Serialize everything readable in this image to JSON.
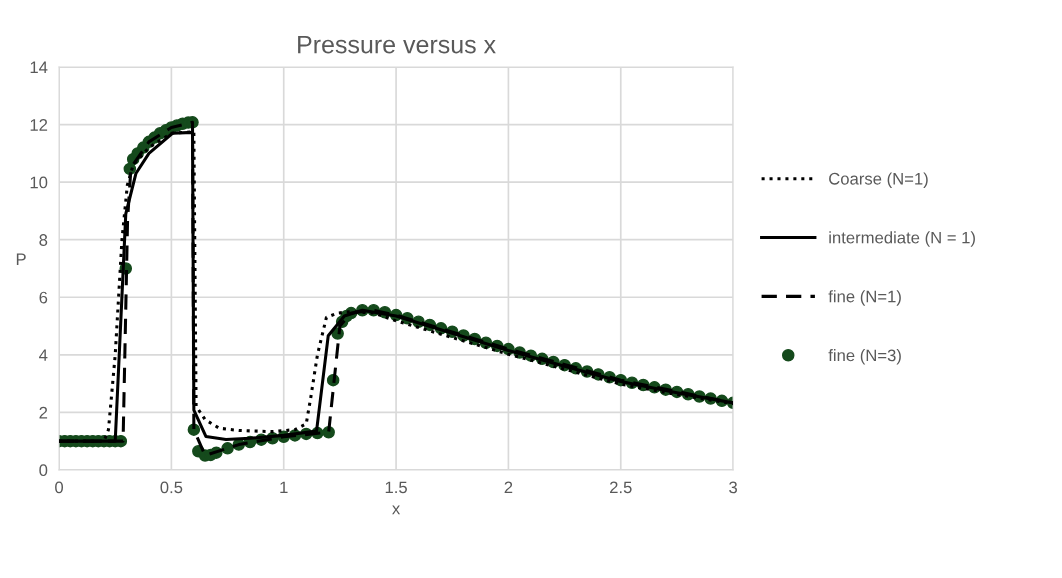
{
  "chart_data": {
    "type": "line",
    "title": "Pressure versus x",
    "xlabel": "x",
    "ylabel": "P",
    "xlim": [
      0,
      3
    ],
    "xticks": [
      0,
      0.5,
      1,
      1.5,
      2,
      2.5,
      3
    ],
    "ylim": [
      0,
      14
    ],
    "yticks": [
      0,
      2,
      4,
      6,
      8,
      10,
      12,
      14
    ],
    "grid": true,
    "legend": "right",
    "series": [
      {
        "name": "Coarse (N=1)",
        "color": "#000000",
        "line_style": "dotted",
        "marker": "none",
        "x": [
          0,
          0.2,
          0.22,
          0.25,
          0.28,
          0.304,
          0.33,
          0.4,
          0.5,
          0.6,
          0.61,
          0.62,
          0.65,
          0.713,
          0.8,
          0.95,
          1.05,
          1.1,
          1.12,
          1.15,
          1.19,
          1.24,
          1.3,
          1.4,
          1.5,
          1.75,
          2.0,
          2.25,
          2.5,
          2.75,
          3.0
        ],
        "values": [
          1,
          1,
          1.4,
          4,
          8,
          9.9,
          10.6,
          11.2,
          11.7,
          11.75,
          2.2,
          2.1,
          1.75,
          1.45,
          1.37,
          1.33,
          1.4,
          1.6,
          2.5,
          4.0,
          5.3,
          5.45,
          5.5,
          5.45,
          5.18,
          4.6,
          4.02,
          3.5,
          2.98,
          2.62,
          2.3
        ]
      },
      {
        "name": "intermediate (N = 1)",
        "color": "#000000",
        "line_style": "solid",
        "marker": "none",
        "x": [
          0,
          0.25,
          0.297,
          0.342,
          0.4,
          0.505,
          0.594,
          0.6,
          0.654,
          0.743,
          0.85,
          1.0,
          1.146,
          1.198,
          1.27,
          1.35,
          1.5,
          1.75,
          2.0,
          2.25,
          2.5,
          2.75,
          3.0
        ],
        "values": [
          1,
          1,
          8.9,
          10.3,
          11.0,
          11.7,
          11.73,
          2.08,
          1.16,
          1.06,
          1.1,
          1.2,
          1.35,
          4.66,
          5.35,
          5.55,
          5.35,
          4.75,
          4.15,
          3.6,
          3.07,
          2.68,
          2.33
        ]
      },
      {
        "name": "fine (N=1)",
        "color": "#000000",
        "line_style": "dashed",
        "marker": "none",
        "x": [
          0,
          0.285,
          0.305,
          0.32,
          0.4,
          0.5,
          0.594,
          0.6,
          0.65,
          0.8,
          1.0,
          1.2,
          1.25,
          1.3,
          1.4,
          1.5,
          2.0,
          2.5,
          3.0
        ],
        "values": [
          1,
          1,
          8.7,
          10.5,
          11.4,
          11.9,
          12.08,
          1.4,
          0.5,
          0.88,
          1.15,
          1.31,
          5.0,
          5.45,
          5.55,
          5.38,
          4.2,
          3.12,
          2.33
        ]
      },
      {
        "name": "fine (N=3)",
        "color": "#154a1c",
        "type": "scatter",
        "marker": "circle",
        "x": [
          0,
          0.025,
          0.05,
          0.075,
          0.1,
          0.125,
          0.15,
          0.175,
          0.2,
          0.225,
          0.25,
          0.275,
          0.297,
          0.315,
          0.33,
          0.35,
          0.375,
          0.4,
          0.425,
          0.45,
          0.475,
          0.5,
          0.525,
          0.55,
          0.575,
          0.594,
          0.6,
          0.62,
          0.65,
          0.675,
          0.7,
          0.75,
          0.8,
          0.85,
          0.9,
          0.95,
          1.0,
          1.05,
          1.1,
          1.15,
          1.2,
          1.22,
          1.24,
          1.26,
          1.28,
          1.3,
          1.35,
          1.4,
          1.45,
          1.5,
          1.55,
          1.6,
          1.65,
          1.7,
          1.75,
          1.8,
          1.85,
          1.9,
          1.95,
          2.0,
          2.05,
          2.1,
          2.15,
          2.2,
          2.25,
          2.3,
          2.35,
          2.4,
          2.45,
          2.5,
          2.55,
          2.6,
          2.65,
          2.7,
          2.75,
          2.8,
          2.85,
          2.9,
          2.95,
          3.0
        ],
        "values": [
          1,
          1,
          1,
          1,
          1,
          1,
          1,
          1,
          1,
          1,
          1,
          1,
          7.0,
          10.46,
          10.8,
          11.0,
          11.2,
          11.4,
          11.55,
          11.7,
          11.8,
          11.9,
          11.97,
          12.03,
          12.07,
          12.08,
          1.4,
          0.65,
          0.5,
          0.52,
          0.6,
          0.75,
          0.88,
          0.97,
          1.05,
          1.1,
          1.15,
          1.2,
          1.25,
          1.28,
          1.31,
          3.12,
          4.74,
          5.15,
          5.35,
          5.45,
          5.55,
          5.55,
          5.48,
          5.38,
          5.27,
          5.15,
          5.04,
          4.92,
          4.8,
          4.67,
          4.55,
          4.42,
          4.31,
          4.2,
          4.08,
          3.97,
          3.86,
          3.75,
          3.64,
          3.53,
          3.42,
          3.32,
          3.22,
          3.12,
          3.03,
          2.95,
          2.87,
          2.79,
          2.71,
          2.63,
          2.55,
          2.48,
          2.4,
          2.33
        ]
      }
    ]
  }
}
